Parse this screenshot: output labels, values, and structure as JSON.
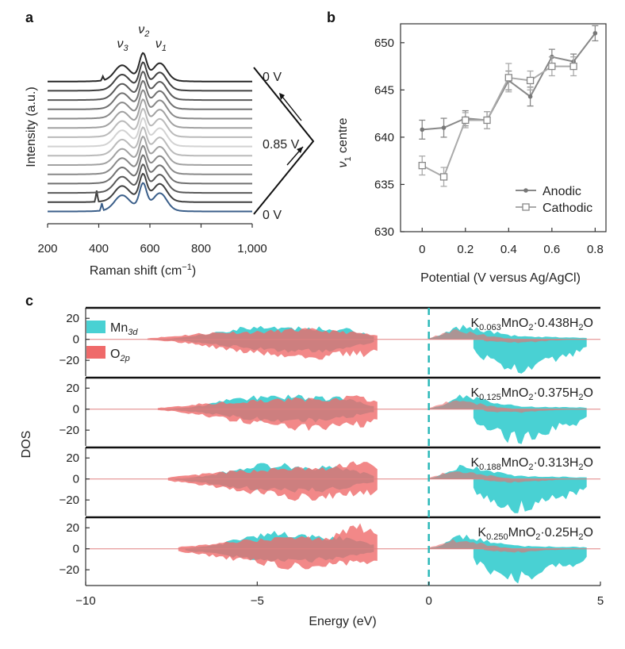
{
  "panels": {
    "a": "a",
    "b": "b",
    "c": "c"
  },
  "chart_data": [
    {
      "type": "line",
      "title": "",
      "xlabel_main": "Raman shift (cm",
      "xlabel_sup": "−1",
      "xlabel_tail": ")",
      "ylabel": "Intensity (a.u.)",
      "xlim": [
        200,
        1000
      ],
      "xticks": [
        {
          "v": 200,
          "label": "200"
        },
        {
          "v": 400,
          "label": "400"
        },
        {
          "v": 600,
          "label": "600"
        },
        {
          "v": 800,
          "label": "800"
        },
        {
          "v": 1000,
          "label": "1,000"
        }
      ],
      "peaks": [
        {
          "base": "ν",
          "sub": "3",
          "x": 490
        },
        {
          "base": "ν",
          "sub": "2",
          "x": 573
        },
        {
          "base": "ν",
          "sub": "1",
          "x": 640
        }
      ],
      "n_spectra": 15,
      "peak_positions": [
        490,
        573,
        640
      ],
      "potential_labels": [
        "0 V",
        "0.85 V",
        "0 V"
      ]
    },
    {
      "type": "line",
      "xlabel": "Potential (V versus Ag/AgCl)",
      "ylabel_base": "ν",
      "ylabel_sub": "1",
      "ylabel_tail": " centre",
      "xlim": [
        -0.1,
        0.85
      ],
      "ylim": [
        630,
        652
      ],
      "xticks": [
        {
          "v": 0,
          "label": "0"
        },
        {
          "v": 0.2,
          "label": "0.2"
        },
        {
          "v": 0.4,
          "label": "0.4"
        },
        {
          "v": 0.6,
          "label": "0.6"
        },
        {
          "v": 0.8,
          "label": "0.8"
        }
      ],
      "yticks": [
        {
          "v": 630,
          "label": "630"
        },
        {
          "v": 635,
          "label": "635"
        },
        {
          "v": 640,
          "label": "640"
        },
        {
          "v": 645,
          "label": "645"
        },
        {
          "v": 650,
          "label": "650"
        }
      ],
      "series": [
        {
          "name": "Anodic",
          "marker": "filled",
          "x": [
            0,
            0.1,
            0.2,
            0.3,
            0.4,
            0.5,
            0.6,
            0.7,
            0.8
          ],
          "y": [
            640.8,
            641.0,
            642.0,
            641.8,
            646.0,
            644.3,
            648.5,
            648.0,
            651.0
          ],
          "err": [
            1.0,
            1.0,
            0.8,
            0.9,
            1.0,
            1.0,
            0.8,
            0.8,
            0.8
          ]
        },
        {
          "name": "Cathodic",
          "marker": "open",
          "x": [
            0,
            0.1,
            0.2,
            0.3,
            0.4,
            0.5,
            0.6,
            0.7
          ],
          "y": [
            637.0,
            635.8,
            641.8,
            641.8,
            646.3,
            646.0,
            647.5,
            647.5
          ],
          "err": [
            1.0,
            1.0,
            0.8,
            0.9,
            1.5,
            1.0,
            1.0,
            1.0
          ]
        }
      ]
    },
    {
      "type": "area",
      "xlabel": "Energy (eV)",
      "ylabel": "DOS",
      "xlim": [
        -10,
        5
      ],
      "ylim": [
        -35,
        30
      ],
      "fermi_level": 0,
      "xticks": [
        {
          "v": -10,
          "label": "−10"
        },
        {
          "v": -5,
          "label": "−5"
        },
        {
          "v": 0,
          "label": "0"
        },
        {
          "v": 5,
          "label": "5"
        }
      ],
      "yticks": [
        {
          "v": 20,
          "label": "20"
        },
        {
          "v": 0,
          "label": "0"
        },
        {
          "v": -20,
          "label": "−20"
        }
      ],
      "legend": [
        {
          "name": "Mn",
          "sub": "3d",
          "color": "#49d1d3"
        },
        {
          "name": "O",
          "sub": "2p",
          "color": "#ef6a6a"
        }
      ],
      "colors": {
        "mn": "#49d1d3",
        "o": "#ef6a6a",
        "overlap": "#a88382",
        "fermi": "#2bb8b8"
      },
      "subpanels": [
        {
          "k_sub": "0.063",
          "h2o_pre": "MnO",
          "o_sub": "2",
          "mid": "·0.438H",
          "h_sub": "2",
          "tail": "O"
        },
        {
          "k_sub": "0.125",
          "h2o_pre": "MnO",
          "o_sub": "2",
          "mid": "·0.375H",
          "h_sub": "2",
          "tail": "O"
        },
        {
          "k_sub": "0.188",
          "h2o_pre": "MnO",
          "o_sub": "2",
          "mid": "·0.313H",
          "h_sub": "2",
          "tail": "O"
        },
        {
          "k_sub": "0.250",
          "h2o_pre": "MnO",
          "o_sub": "2",
          "mid": "·0.25H",
          "h_sub": "2",
          "tail": "O"
        }
      ]
    }
  ]
}
